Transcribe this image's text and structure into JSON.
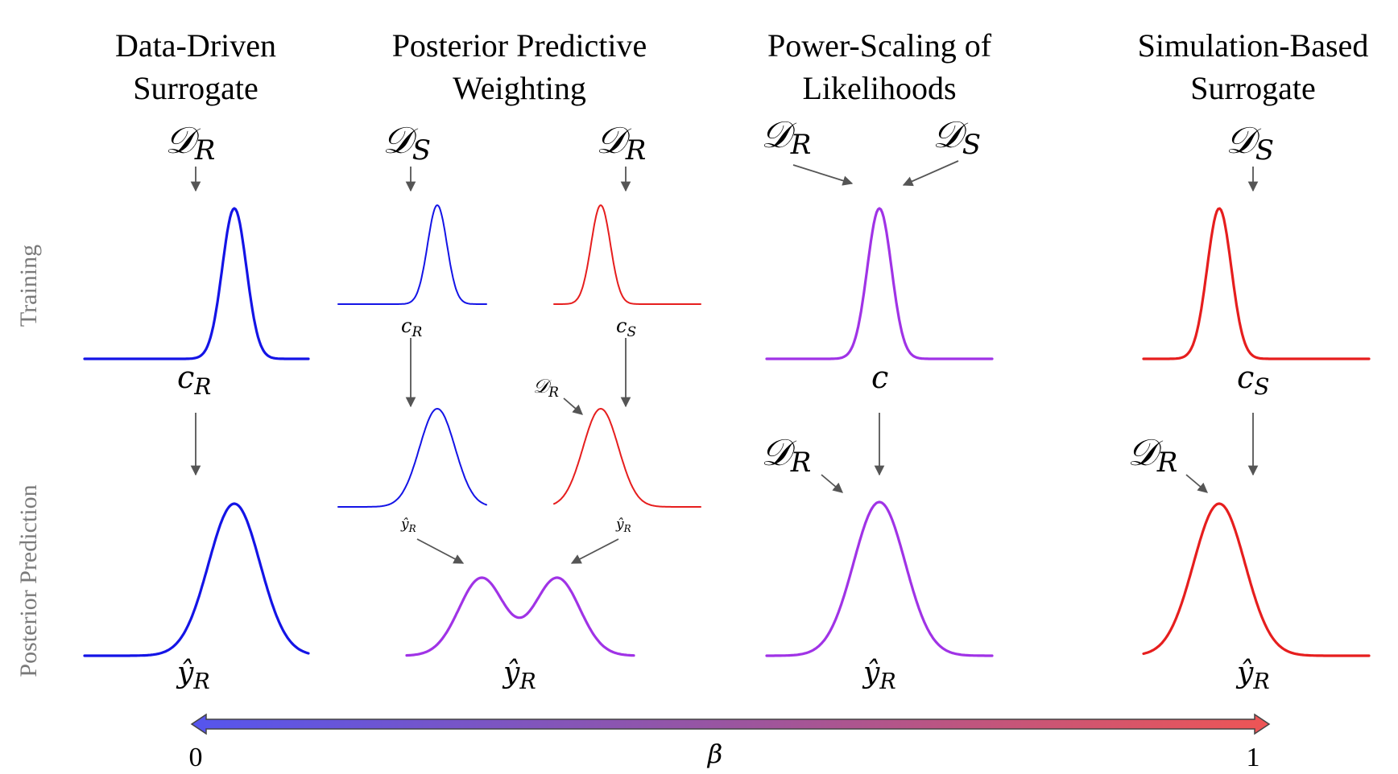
{
  "columns": [
    {
      "title_line1": "Data-Driven",
      "title_line2": "Surrogate"
    },
    {
      "title_line1": "Posterior Predictive",
      "title_line2": "Weighting"
    },
    {
      "title_line1": "Power-Scaling of",
      "title_line2": "Likelihoods"
    },
    {
      "title_line1": "Simulation-Based",
      "title_line2": "Surrogate"
    }
  ],
  "rows": {
    "training": "Training",
    "prediction": "Posterior Prediction"
  },
  "symbols": {
    "D": "𝒟",
    "R": "R",
    "S": "S",
    "c": "c",
    "yhat": "ŷ"
  },
  "scale": {
    "label": "β",
    "min": "0",
    "max": "1"
  },
  "colors": {
    "real": "#1414e6",
    "simulated": "#e61e1e",
    "mixed": "#a033e6",
    "arrow": "#555555",
    "gradient_start": "#5555ee",
    "gradient_end": "#ee5555"
  }
}
